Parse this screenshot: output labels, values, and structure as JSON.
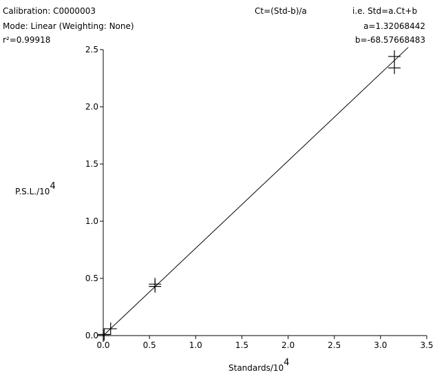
{
  "header": {
    "calibration": "Calibration: C0000003",
    "mode": "Mode: Linear (Weighting: None)",
    "r2": "r²=0.99918",
    "formula": "Ct=(Std-b)/a",
    "inverse": "i.e. Std=a.Ct+b",
    "a": "a=1.32068442",
    "b": "b=-68.57668483"
  },
  "chart_data": {
    "type": "scatter",
    "xlabel": "Standards/10",
    "xlabel_exp": "4",
    "ylabel": "P.S.L./10",
    "ylabel_exp": "4",
    "xlim": [
      0,
      3.5
    ],
    "ylim": [
      0,
      2.5
    ],
    "xticks": [
      "0.0",
      "0.5",
      "1.0",
      "1.5",
      "2.0",
      "2.5",
      "3.0",
      "3.5"
    ],
    "yticks": [
      "0.0",
      "0.5",
      "1.0",
      "1.5",
      "2.0",
      "2.5"
    ],
    "points": [
      {
        "x": 0.0,
        "y": 0.0
      },
      {
        "x": 0.01,
        "y": 0.01
      },
      {
        "x": 0.08,
        "y": 0.06
      },
      {
        "x": 0.56,
        "y": 0.43
      },
      {
        "x": 0.56,
        "y": 0.45
      },
      {
        "x": 3.15,
        "y": 2.34
      },
      {
        "x": 3.15,
        "y": 2.44
      }
    ],
    "fit_line": {
      "x": [
        0.0,
        3.3
      ],
      "y": [
        0.0,
        2.52
      ]
    },
    "grid": false
  }
}
